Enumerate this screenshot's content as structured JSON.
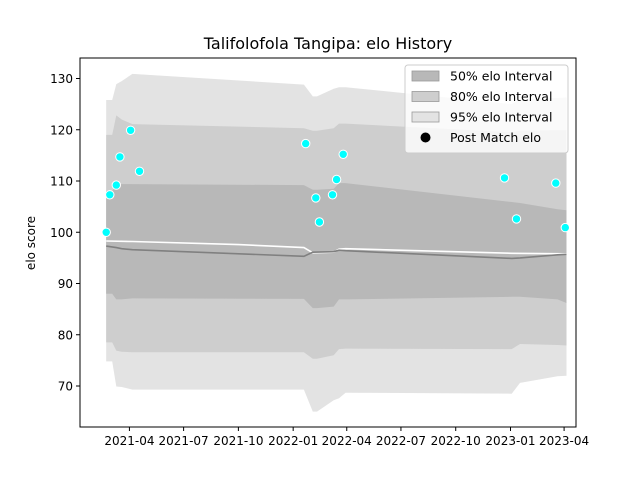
{
  "chart_data": {
    "type": "area",
    "title": "Talifolofola Tangipa: elo History",
    "xlabel": "",
    "ylabel": "elo score",
    "xlim": [
      "2021-01-08",
      "2023-04-21"
    ],
    "ylim": [
      62,
      134
    ],
    "grid": false,
    "legend_placement": "top-right",
    "x_ticks": [
      {
        "date": "2021-04-01",
        "label": "2021-04"
      },
      {
        "date": "2021-07-01",
        "label": "2021-07"
      },
      {
        "date": "2021-10-01",
        "label": "2021-10"
      },
      {
        "date": "2022-01-01",
        "label": "2022-01"
      },
      {
        "date": "2022-04-01",
        "label": "2022-04"
      },
      {
        "date": "2022-07-01",
        "label": "2022-07"
      },
      {
        "date": "2022-10-01",
        "label": "2022-10"
      },
      {
        "date": "2023-01-01",
        "label": "2023-01"
      },
      {
        "date": "2023-04-01",
        "label": "2023-04"
      }
    ],
    "y_ticks": [
      70,
      80,
      90,
      100,
      110,
      120,
      130
    ],
    "bands": [
      {
        "name": "95% elo Interval",
        "color": "#e3e3e3",
        "x": [
          "2021-02-21",
          "2021-03-03",
          "2021-03-10",
          "2021-03-19",
          "2021-04-06",
          "2022-01-19",
          "2022-02-03",
          "2022-02-10",
          "2022-03-10",
          "2022-03-19",
          "2022-03-30",
          "2023-01-03",
          "2023-01-17",
          "2023-03-21",
          "2023-04-05"
        ],
        "upper": [
          125.8,
          125.8,
          128.9,
          129.5,
          130.9,
          128.8,
          126.5,
          126.5,
          128.0,
          128.3,
          128.3,
          125.0,
          126.0,
          126.2,
          126.3
        ],
        "lower": [
          74.8,
          74.8,
          69.9,
          69.8,
          69.3,
          69.3,
          65.0,
          65.0,
          67.2,
          67.6,
          68.7,
          68.5,
          70.6,
          71.9,
          72.0
        ]
      },
      {
        "name": "80% elo Interval",
        "color": "#cecece",
        "x": [
          "2021-02-21",
          "2021-03-03",
          "2021-03-10",
          "2021-03-19",
          "2021-04-06",
          "2022-01-19",
          "2022-02-03",
          "2022-02-10",
          "2022-03-10",
          "2022-03-19",
          "2022-03-30",
          "2023-01-03",
          "2023-01-17",
          "2023-03-21",
          "2023-04-05"
        ],
        "upper": [
          119.0,
          119.0,
          122.8,
          122.0,
          121.1,
          120.3,
          119.8,
          119.8,
          120.3,
          121.2,
          121.2,
          119.5,
          119.8,
          119.9,
          119.9
        ],
        "lower": [
          78.5,
          78.5,
          76.9,
          76.7,
          76.6,
          76.6,
          75.3,
          75.3,
          76.0,
          77.2,
          77.3,
          77.2,
          78.2,
          78.0,
          77.9
        ]
      },
      {
        "name": "50% elo Interval",
        "color": "#b8b8b8",
        "x": [
          "2021-02-21",
          "2021-03-03",
          "2021-03-10",
          "2021-03-19",
          "2021-04-06",
          "2022-01-19",
          "2022-02-03",
          "2022-02-10",
          "2022-03-10",
          "2022-03-19",
          "2022-03-30",
          "2023-01-03",
          "2023-01-17",
          "2023-03-21",
          "2023-04-05"
        ],
        "upper": [
          108.0,
          108.0,
          109.4,
          109.4,
          109.4,
          109.2,
          108.3,
          108.3,
          108.5,
          109.6,
          109.6,
          105.9,
          105.7,
          104.5,
          104.3
        ],
        "lower": [
          88.0,
          88.0,
          86.9,
          86.9,
          87.1,
          87.0,
          85.2,
          85.2,
          85.5,
          86.9,
          86.9,
          87.4,
          87.4,
          86.9,
          86.2
        ]
      }
    ],
    "lines": [
      {
        "role": "mean",
        "color": "#ffffff",
        "x": [
          "2021-02-21",
          "2021-04-06",
          "2021-10-01",
          "2022-01-19",
          "2022-02-03",
          "2022-03-10",
          "2022-03-19",
          "2022-03-30",
          "2023-01-03",
          "2023-04-05"
        ],
        "y": [
          98.3,
          98.2,
          97.6,
          97.0,
          96.0,
          96.1,
          96.7,
          96.8,
          95.9,
          95.8
        ]
      },
      {
        "role": "median",
        "color": "#808080",
        "x": [
          "2021-02-21",
          "2021-03-10",
          "2021-03-19",
          "2021-04-06",
          "2022-01-19",
          "2022-02-03",
          "2022-03-10",
          "2022-03-19",
          "2022-03-30",
          "2023-01-03",
          "2023-01-17",
          "2023-03-21",
          "2023-04-05"
        ],
        "y": [
          97.3,
          97.0,
          96.8,
          96.6,
          95.3,
          96.1,
          96.2,
          96.5,
          96.4,
          94.9,
          95.0,
          95.6,
          95.7
        ]
      }
    ],
    "points": {
      "name": "Post Match elo",
      "color": "#00ffff",
      "edge": "#ffffff",
      "x": [
        "2021-02-21",
        "2021-02-27",
        "2021-03-10",
        "2021-03-16",
        "2021-04-03",
        "2021-04-18",
        "2022-01-22",
        "2022-02-08",
        "2022-02-14",
        "2022-03-08",
        "2022-03-15",
        "2022-03-26",
        "2022-12-22",
        "2023-01-11",
        "2023-03-18",
        "2023-04-03"
      ],
      "y": [
        100.0,
        107.3,
        109.2,
        114.7,
        119.9,
        111.9,
        117.3,
        106.7,
        102.0,
        107.3,
        110.3,
        115.2,
        110.6,
        102.6,
        109.6,
        100.9
      ]
    },
    "legend": [
      {
        "label": "50% elo Interval",
        "kind": "patch",
        "color": "#b8b8b8"
      },
      {
        "label": "80% elo Interval",
        "kind": "patch",
        "color": "#cecece"
      },
      {
        "label": "95% elo Interval",
        "kind": "patch",
        "color": "#e3e3e3"
      },
      {
        "label": "Post Match elo",
        "kind": "marker",
        "color": "#000000"
      }
    ]
  }
}
